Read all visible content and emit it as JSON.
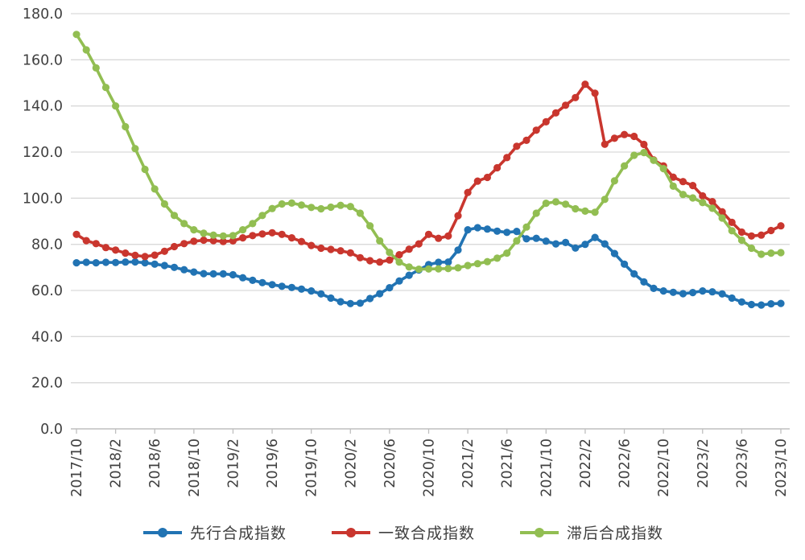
{
  "page": {
    "background": "#ffffff"
  },
  "chart_data": {
    "type": "line",
    "title": "",
    "xlabel": "",
    "ylabel": "",
    "ylim": [
      0,
      180
    ],
    "y_tick_step": 20,
    "y_tick_format": "one_decimal",
    "x_tick_every": 4,
    "grid": "horizontal",
    "legend_position": "bottom",
    "marker": "circle",
    "x": [
      "2017/10",
      "2017/11",
      "2017/12",
      "2018/1",
      "2018/2",
      "2018/3",
      "2018/4",
      "2018/5",
      "2018/6",
      "2018/7",
      "2018/8",
      "2018/9",
      "2018/10",
      "2018/11",
      "2018/12",
      "2019/1",
      "2019/2",
      "2019/3",
      "2019/4",
      "2019/5",
      "2019/6",
      "2019/7",
      "2019/8",
      "2019/9",
      "2019/10",
      "2019/11",
      "2019/12",
      "2020/1",
      "2020/2",
      "2020/3",
      "2020/4",
      "2020/5",
      "2020/6",
      "2020/7",
      "2020/8",
      "2020/9",
      "2020/10",
      "2020/11",
      "2020/12",
      "2021/1",
      "2021/2",
      "2021/3",
      "2021/4",
      "2021/5",
      "2021/6",
      "2021/7",
      "2021/8",
      "2021/9",
      "2021/10",
      "2021/11",
      "2021/12",
      "2022/1",
      "2022/2",
      "2022/3",
      "2022/4",
      "2022/5",
      "2022/6",
      "2022/7",
      "2022/8",
      "2022/9",
      "2022/10",
      "2022/11",
      "2022/12",
      "2023/1",
      "2023/2",
      "2023/3",
      "2023/4",
      "2023/5",
      "2023/6",
      "2023/7",
      "2023/8",
      "2023/9",
      "2023/10"
    ],
    "x_tick_labels": [
      "2017/10",
      "2018/2",
      "2018/6",
      "2018/10",
      "2019/2",
      "2019/6",
      "2019/10",
      "2020/2",
      "2020/6",
      "2020/10",
      "2021/2",
      "2021/6",
      "2021/10",
      "2022/2",
      "2022/6",
      "2022/10",
      "2023/2",
      "2023/6",
      "2023/10"
    ],
    "series": [
      {
        "name": "先行合成指数",
        "color": "#2173B3",
        "values": [
          72.0,
          72.2,
          72.0,
          72.2,
          72.1,
          72.3,
          72.4,
          72.0,
          71.4,
          70.8,
          70.0,
          69.0,
          68.0,
          67.3,
          67.2,
          67.2,
          66.8,
          65.5,
          64.4,
          63.4,
          62.5,
          61.8,
          61.3,
          60.6,
          59.8,
          58.5,
          56.7,
          55.1,
          54.3,
          54.5,
          56.5,
          58.6,
          61.2,
          64.1,
          66.6,
          68.9,
          71.2,
          72.2,
          72.3,
          77.5,
          86.3,
          87.2,
          86.6,
          85.7,
          85.2,
          85.6,
          82.4,
          82.6,
          81.4,
          80.2,
          80.8,
          78.4,
          80.0,
          83.0,
          80.2,
          76.0,
          71.4,
          67.2,
          63.7,
          60.9,
          59.8,
          59.2,
          58.6,
          59.1,
          59.8,
          59.4,
          58.5,
          56.7,
          55.0,
          53.9,
          53.7,
          54.2,
          54.4
        ]
      },
      {
        "name": "一致合成指数",
        "color": "#C9362E",
        "values": [
          84.3,
          81.6,
          80.3,
          78.6,
          77.5,
          76.2,
          75.2,
          74.7,
          75.3,
          77.0,
          79.0,
          80.3,
          81.3,
          81.8,
          81.6,
          81.2,
          81.5,
          82.8,
          83.8,
          84.5,
          85.0,
          84.3,
          82.8,
          81.2,
          79.5,
          78.3,
          77.8,
          77.2,
          76.3,
          74.2,
          72.9,
          72.3,
          73.2,
          75.5,
          77.9,
          80.2,
          84.3,
          82.6,
          83.6,
          92.4,
          102.5,
          107.4,
          109.0,
          113.2,
          117.6,
          122.5,
          125.1,
          129.5,
          133.1,
          137.0,
          140.3,
          143.6,
          149.4,
          145.5,
          123.4,
          126.0,
          127.6,
          126.8,
          123.3,
          116.6,
          114.0,
          109.1,
          107.2,
          105.5,
          101.0,
          98.5,
          94.1,
          89.5,
          85.3,
          83.6,
          84.0,
          86.0,
          88.0
        ]
      },
      {
        "name": "滞后合成指数",
        "color": "#92BE52",
        "values": [
          171.0,
          164.3,
          156.5,
          148.0,
          140.0,
          131.0,
          121.5,
          112.5,
          104.0,
          97.5,
          92.5,
          89.0,
          86.3,
          84.8,
          84.0,
          83.6,
          83.8,
          86.3,
          89.0,
          92.5,
          95.5,
          97.5,
          97.9,
          97.0,
          96.0,
          95.4,
          96.1,
          96.9,
          96.4,
          93.5,
          88.0,
          81.5,
          76.5,
          72.3,
          70.2,
          69.2,
          69.3,
          69.4,
          69.5,
          69.8,
          70.8,
          71.6,
          72.5,
          74.0,
          76.2,
          81.5,
          87.5,
          93.5,
          97.8,
          98.4,
          97.4,
          95.4,
          94.4,
          93.9,
          99.5,
          107.5,
          114.0,
          118.6,
          119.8,
          116.4,
          112.8,
          105.2,
          101.6,
          100.1,
          98.1,
          95.6,
          91.4,
          85.9,
          81.8,
          78.3,
          75.7,
          76.2,
          76.4
        ]
      }
    ],
    "colors": {
      "gridline": "#D9D9D9",
      "axis": "#BFBFBF",
      "tick_label": "#404040"
    }
  }
}
